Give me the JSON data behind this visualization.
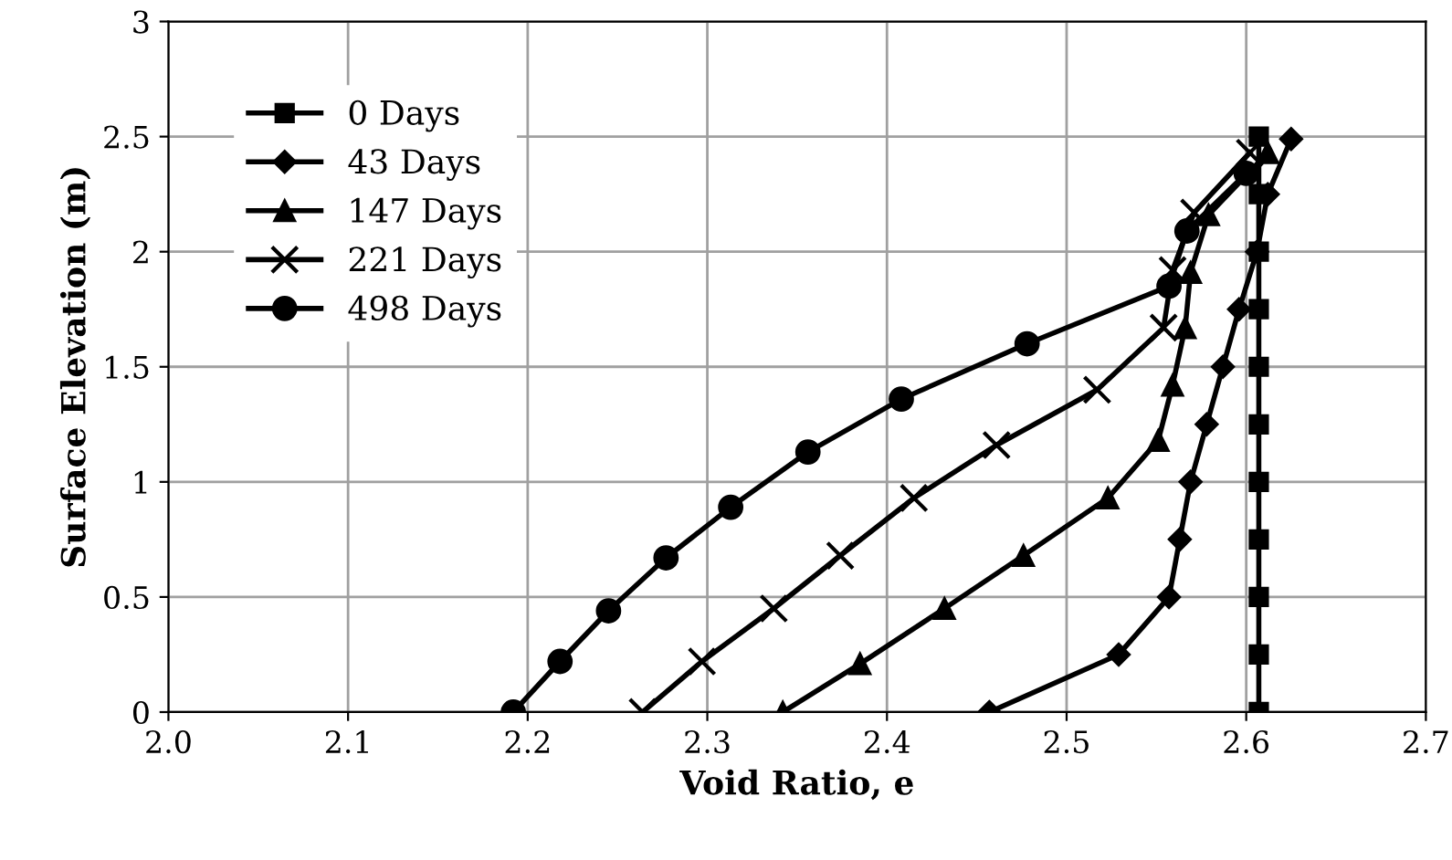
{
  "chart_data": {
    "type": "line",
    "xlabel": "Void Ratio, e",
    "ylabel": "Surface Elevation (m)",
    "xlim": [
      2.0,
      2.7
    ],
    "xticks": [
      {
        "value": 2.0,
        "label": "2.0"
      },
      {
        "value": 2.1,
        "label": "2.1"
      },
      {
        "value": 2.2,
        "label": "2.2"
      },
      {
        "value": 2.3,
        "label": "2.3"
      },
      {
        "value": 2.4,
        "label": "2.4"
      },
      {
        "value": 2.5,
        "label": "2.5"
      },
      {
        "value": 2.6,
        "label": "2.6"
      },
      {
        "value": 2.7,
        "label": "2.7"
      }
    ],
    "ylim": [
      0,
      3
    ],
    "yticks": [
      0,
      0.5,
      1,
      1.5,
      2,
      2.5,
      3
    ],
    "grid": true,
    "legend": "top left",
    "line_style": "solid",
    "series": [
      {
        "name": "0 Days",
        "color": "#000000",
        "marker": "square",
        "x": [
          2.607,
          2.607,
          2.607,
          2.607,
          2.607,
          2.607,
          2.607,
          2.607,
          2.607,
          2.607,
          2.607
        ],
        "values": [
          0,
          0.25,
          0.5,
          0.75,
          1.0,
          1.25,
          1.5,
          1.75,
          2.0,
          2.25,
          2.5
        ]
      },
      {
        "name": "43 Days",
        "color": "#000000",
        "marker": "diamond",
        "x": [
          2.457,
          2.529,
          2.557,
          2.563,
          2.569,
          2.578,
          2.587,
          2.596,
          2.606,
          2.612,
          2.625
        ],
        "values": [
          0,
          0.25,
          0.5,
          0.75,
          1.0,
          1.25,
          1.5,
          1.75,
          2.0,
          2.25,
          2.49
        ]
      },
      {
        "name": "147 Days",
        "color": "#000000",
        "marker": "triangle",
        "x": [
          2.342,
          2.385,
          2.432,
          2.476,
          2.523,
          2.551,
          2.559,
          2.566,
          2.569,
          2.579,
          2.612
        ],
        "values": [
          0,
          0.21,
          0.45,
          0.68,
          0.93,
          1.18,
          1.42,
          1.67,
          1.91,
          2.16,
          2.43
        ]
      },
      {
        "name": "221 Days",
        "color": "#000000",
        "marker": "cross",
        "x": [
          2.264,
          2.297,
          2.337,
          2.374,
          2.415,
          2.461,
          2.517,
          2.554,
          2.559,
          2.571,
          2.602
        ],
        "values": [
          0,
          0.22,
          0.45,
          0.68,
          0.93,
          1.16,
          1.4,
          1.67,
          1.92,
          2.17,
          2.43
        ]
      },
      {
        "name": "498 Days",
        "color": "#000000",
        "marker": "circle",
        "x": [
          2.192,
          2.218,
          2.245,
          2.277,
          2.313,
          2.356,
          2.408,
          2.478,
          2.557,
          2.567,
          2.6
        ],
        "values": [
          0,
          0.22,
          0.44,
          0.67,
          0.89,
          1.13,
          1.36,
          1.6,
          1.85,
          2.09,
          2.34
        ]
      }
    ]
  }
}
